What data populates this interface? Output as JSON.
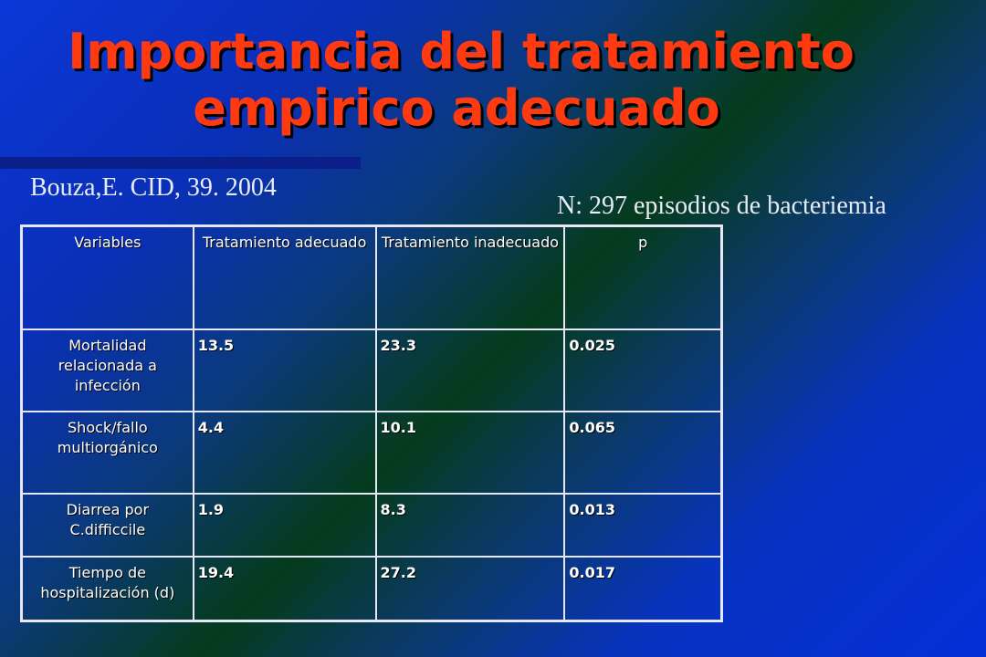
{
  "slide": {
    "title_line1": "Importancia del tratamiento",
    "title_line2": "empirico adecuado",
    "citation": "Bouza,E. CID, 39. 2004",
    "sample": "N: 297 episodios de bacteriemia"
  },
  "table": {
    "headers": [
      "Variables",
      "Tratamiento adecuado",
      "Tratamiento inadecuado",
      "p"
    ],
    "rows": [
      {
        "variable": "Mortalidad relacionada a infección",
        "adecuado": "13.5",
        "inadecuado": "23.3",
        "p": "0.025"
      },
      {
        "variable": "Shock/fallo multiorgánico",
        "adecuado": "4.4",
        "inadecuado": "10.1",
        "p": "0.065"
      },
      {
        "variable": "Diarrea por C.difficcile",
        "adecuado": "1.9",
        "inadecuado": "8.3",
        "p": "0.013"
      },
      {
        "variable": "Tiempo de hospitalización (d)",
        "adecuado": "19.4",
        "inadecuado": "27.2",
        "p": "0.017"
      }
    ]
  },
  "colors": {
    "title": "#ff3a10",
    "background_blue": "#0a37d6",
    "background_green": "#053b1c",
    "text": "#ffffff"
  }
}
